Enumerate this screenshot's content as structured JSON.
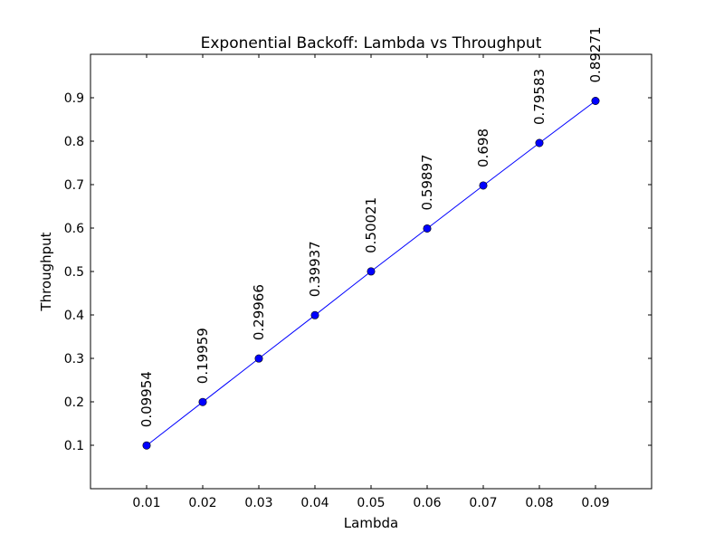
{
  "chart_data": {
    "type": "line",
    "title": "Exponential Backoff: Lambda vs Throughput",
    "xlabel": "Lambda",
    "ylabel": "Throughput",
    "xlim": [
      0.0,
      0.1
    ],
    "ylim": [
      0.0,
      1.0
    ],
    "x_ticks": [
      0.01,
      0.02,
      0.03,
      0.04,
      0.05,
      0.06,
      0.07,
      0.08,
      0.09
    ],
    "x_tick_labels": [
      "0.01",
      "0.02",
      "0.03",
      "0.04",
      "0.05",
      "0.06",
      "0.07",
      "0.08",
      "0.09"
    ],
    "y_ticks": [
      0.1,
      0.2,
      0.3,
      0.4,
      0.5,
      0.6,
      0.7,
      0.8,
      0.9
    ],
    "y_tick_labels": [
      "0.1",
      "0.2",
      "0.3",
      "0.4",
      "0.5",
      "0.6",
      "0.7",
      "0.8",
      "0.9"
    ],
    "grid": false,
    "series": [
      {
        "color": "#0000ff",
        "marker": "circle",
        "x": [
          0.01,
          0.02,
          0.03,
          0.04,
          0.05,
          0.06,
          0.07,
          0.08,
          0.09
        ],
        "y": [
          0.09954,
          0.19959,
          0.29966,
          0.39937,
          0.50021,
          0.59897,
          0.698,
          0.79583,
          0.89271
        ],
        "data_labels": [
          "0.09954",
          "0.19959",
          "0.29966",
          "0.39937",
          "0.50021",
          "0.59897",
          "0.698",
          "0.79583",
          "0.89271"
        ]
      }
    ]
  }
}
